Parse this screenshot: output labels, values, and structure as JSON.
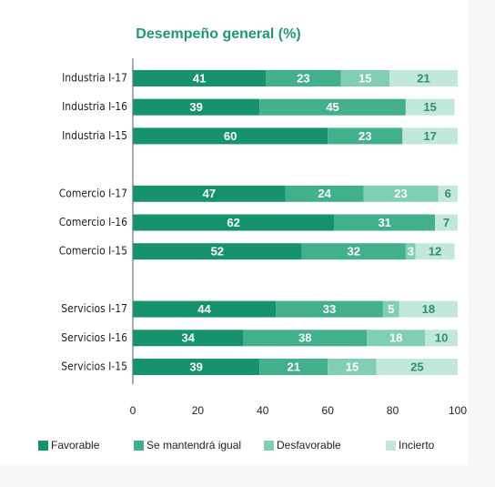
{
  "chart_data": {
    "type": "stacked-bar",
    "orientation": "horizontal",
    "title": "Desempeño general (%)",
    "categories": [
      "Industria I-17",
      "Industria I-16",
      "Industria I-15",
      null,
      "Comercio I-17",
      "Comercio I-16",
      "Comercio I-15",
      null,
      "Servicios I-17",
      "Servicios I-16",
      "Servicios I-15"
    ],
    "series": [
      {
        "name": "Favorable",
        "color": "#16936c",
        "values": [
          41,
          39,
          60,
          null,
          47,
          62,
          52,
          null,
          44,
          34,
          39
        ]
      },
      {
        "name": "Se mantendrá igual",
        "color": "#43b08d",
        "values": [
          23,
          45,
          23,
          null,
          24,
          31,
          32,
          null,
          33,
          38,
          21
        ]
      },
      {
        "name": "Desfavorable",
        "color": "#80cfb3",
        "values": [
          15,
          null,
          null,
          null,
          23,
          null,
          3,
          null,
          5,
          18,
          15
        ]
      },
      {
        "name": "Incierto",
        "color": "#c2e8da",
        "values": [
          21,
          15,
          17,
          null,
          6,
          7,
          12,
          null,
          18,
          10,
          25
        ]
      }
    ],
    "xlim": [
      0,
      100
    ],
    "xticks": [
      0,
      20,
      40,
      60,
      80,
      100
    ],
    "legend": "bottom"
  }
}
